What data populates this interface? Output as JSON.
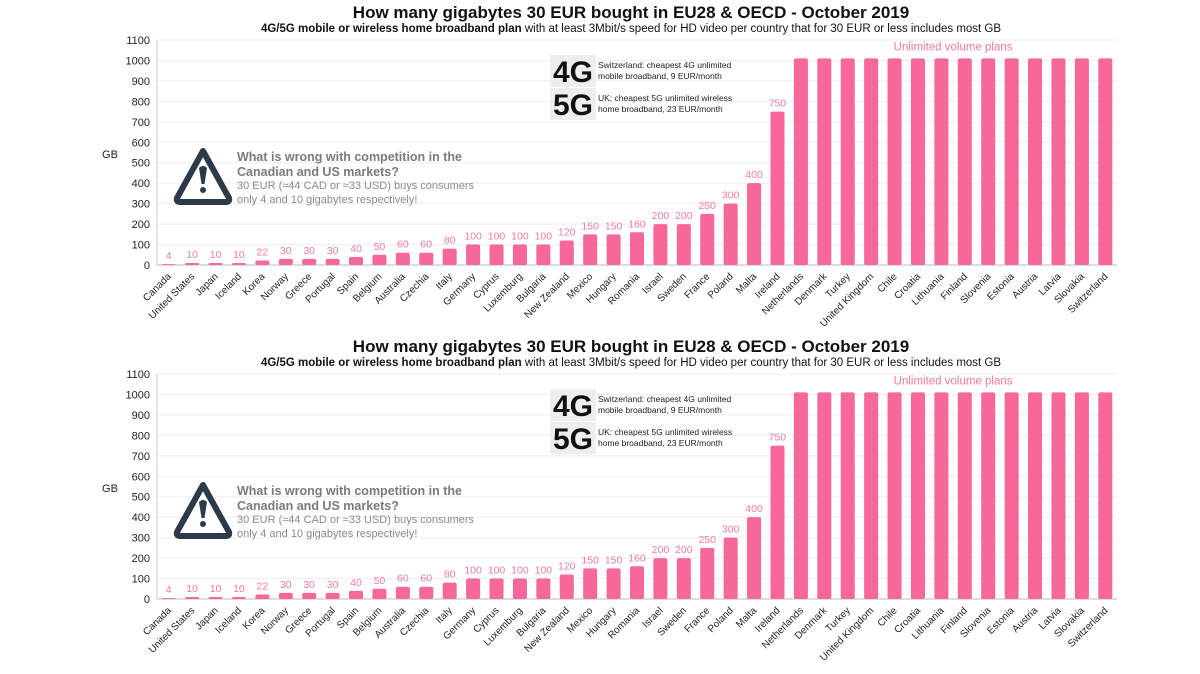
{
  "chart_data": [
    {
      "type": "bar",
      "title": "How many gigabytes 30 EUR bought in EU28 & OECD - October 2019",
      "subtitle_bold": "4G/5G mobile or wireless home broadband plan",
      "subtitle_rest": " with at least 3Mbit/s speed for HD video per country that for 30 EUR or less includes most GB",
      "ylabel": "GB",
      "xlabel": "",
      "ylim": [
        0,
        1100
      ],
      "yticks": [
        0,
        100,
        200,
        300,
        400,
        500,
        600,
        700,
        800,
        900,
        1000,
        1100
      ],
      "grid": true,
      "bar_color": "#f7689a",
      "categories": [
        "Canada",
        "United States",
        "Japan",
        "Iceland",
        "Korea",
        "Norway",
        "Greece",
        "Portugal",
        "Spain",
        "Belgium",
        "Australia",
        "Czechia",
        "Italy",
        "Germany",
        "Cyprus",
        "Luxemburg",
        "Bulgaria",
        "New Zealand",
        "Mexico",
        "Hungary",
        "Romania",
        "Israel",
        "Sweden",
        "France",
        "Poland",
        "Malta",
        "Ireland",
        "Netherlands",
        "Denmark",
        "Turkey",
        "United Kingdom",
        "Chile",
        "Croatia",
        "Lithuania",
        "Finland",
        "Slovenia",
        "Estonia",
        "Austria",
        "Latvia",
        "Slovakia",
        "Switzerland"
      ],
      "values": [
        4,
        10,
        10,
        10,
        22,
        30,
        30,
        30,
        40,
        50,
        60,
        60,
        80,
        100,
        100,
        100,
        100,
        120,
        150,
        150,
        160,
        200,
        200,
        250,
        300,
        400,
        750,
        1010,
        1010,
        1010,
        1010,
        1010,
        1010,
        1010,
        1010,
        1010,
        1010,
        1010,
        1010,
        1010,
        1010
      ],
      "data_labels": [
        "4",
        "10",
        "10",
        "10",
        "22",
        "30",
        "30",
        "30",
        "40",
        "50",
        "60",
        "60",
        "80",
        "100",
        "100",
        "100",
        "100",
        "120",
        "150",
        "150",
        "160",
        "200",
        "200",
        "250",
        "300",
        "400",
        "750",
        "",
        "",
        "",
        "",
        "",
        "",
        "",
        "",
        "",
        "",
        "",
        "",
        "",
        ""
      ],
      "unlimited_label": "Unlimited volume plans",
      "warning": {
        "icon": "warning-triangle-icon",
        "heading_1": "What is wrong with competition in the",
        "heading_2": "Canadian and US markets?",
        "body_1": "30 EUR (≈44 CAD or ≈33 USD) buys consumers",
        "body_2": "only 4 and 10 gigabytes respectively!"
      },
      "callouts": [
        {
          "badge": "4G",
          "line_1": "Switzerland: cheapest 4G unlimited",
          "line_2": "mobile broadband, 9 EUR/month"
        },
        {
          "badge": "5G",
          "line_1": "UK: cheapest 5G unlimited wireless",
          "line_2": "home broadband, 23 EUR/month"
        }
      ]
    }
  ]
}
